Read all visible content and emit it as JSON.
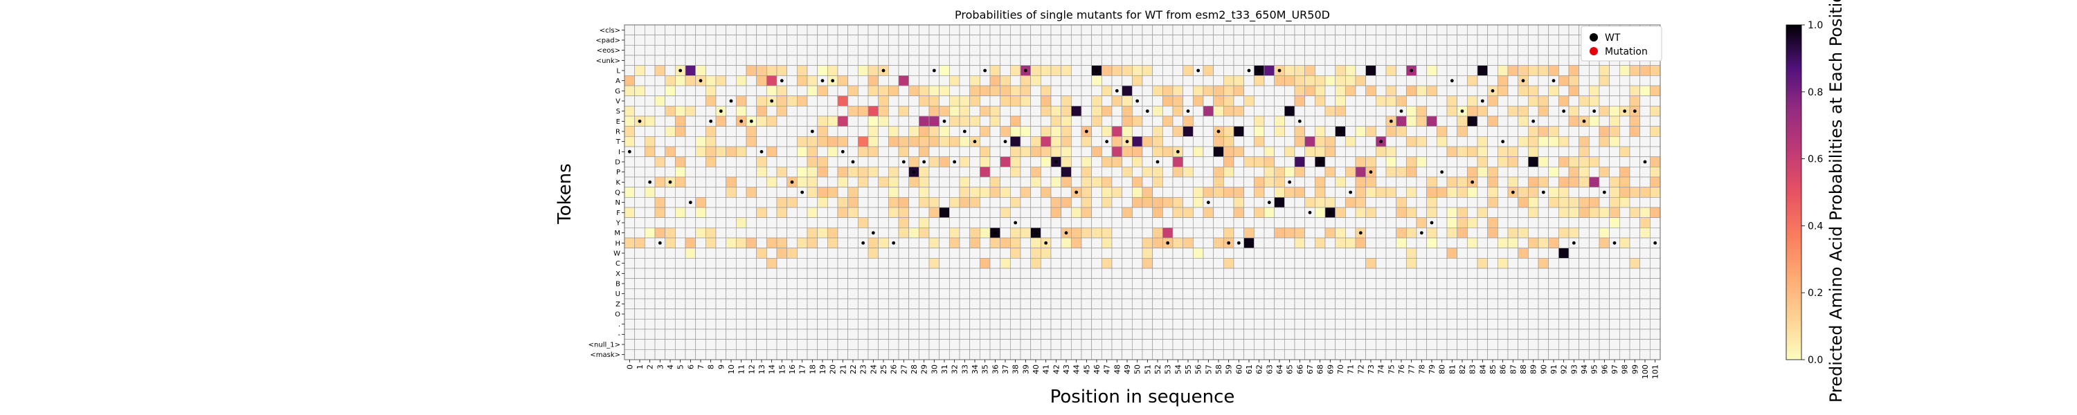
{
  "chart_data": {
    "type": "heatmap",
    "title": "Probabilities of single mutants for WT from esm2_t33_650M_UR50D",
    "xlabel": "Position in sequence",
    "ylabel": "Tokens",
    "colorbar_label": "Predicted Amino Acid Probabilities at Each Position",
    "colorbar_ticks": [
      "0.0",
      "0.2",
      "0.4",
      "0.6",
      "0.8",
      "1.0"
    ],
    "colorbar_range": [
      0,
      1
    ],
    "colormap": "magma_r",
    "legend_position": "top-right",
    "legend": [
      {
        "label": "WT",
        "color": "#000000"
      },
      {
        "label": "Mutation",
        "color": "#e8000b"
      }
    ],
    "tokens": [
      "<cls>",
      "<pad>",
      "<eos>",
      "<unk>",
      "L",
      "A",
      "G",
      "V",
      "S",
      "E",
      "R",
      "T",
      "I",
      "D",
      "P",
      "K",
      "Q",
      "N",
      "F",
      "Y",
      "M",
      "H",
      "W",
      "C",
      "X",
      "B",
      "U",
      "Z",
      "O",
      ".",
      "-",
      "<null_1>",
      "<mask>"
    ],
    "positions": [
      "0",
      "1",
      "2",
      "3",
      "4",
      "5",
      "6",
      "7",
      "8",
      "9",
      "10",
      "11",
      "12",
      "13",
      "14",
      "15",
      "16",
      "17",
      "18",
      "19",
      "20",
      "21",
      "22",
      "23",
      "24",
      "25",
      "26",
      "27",
      "28",
      "29",
      "30",
      "31",
      "32",
      "33",
      "34",
      "35",
      "36",
      "37",
      "38",
      "39",
      "40",
      "41",
      "42",
      "43",
      "44",
      "45",
      "46",
      "47",
      "48",
      "49",
      "50",
      "51",
      "52",
      "53",
      "54",
      "55",
      "56",
      "57",
      "58",
      "59",
      "60",
      "61",
      "62",
      "63",
      "64",
      "65",
      "66",
      "67",
      "68",
      "69",
      "70",
      "71",
      "72",
      "73",
      "74",
      "75",
      "76",
      "77",
      "78",
      "79",
      "80",
      "81",
      "82",
      "83",
      "84",
      "85",
      "86",
      "87",
      "88",
      "89",
      "90",
      "91",
      "92",
      "93",
      "94",
      "95",
      "96",
      "97",
      "98",
      "99",
      "100",
      "101"
    ],
    "wild_type_tokens": [
      "I",
      "E",
      "K",
      "H",
      "K",
      "L",
      "N",
      "A",
      "E",
      "S",
      "V",
      "E",
      "E",
      "I",
      "V",
      "A",
      "K",
      "Q",
      "R",
      "A",
      "A",
      "I",
      "D",
      "H",
      "M",
      "L",
      "H",
      "D",
      "P",
      "D",
      "L",
      "E",
      "D",
      "R",
      "T",
      "L",
      "M",
      "T",
      "Y",
      "L",
      "M",
      "H",
      "D",
      "M",
      "Q",
      "R",
      "L",
      "T",
      "G",
      "T",
      "V",
      "S",
      "D",
      "H",
      "I",
      "S",
      "L",
      "N",
      "R",
      "H",
      "H",
      "L",
      "L",
      "N",
      "L",
      "K",
      "E",
      "F",
      "D",
      "F",
      "R",
      "Q",
      "M",
      "P",
      "T",
      "E",
      "S",
      "L",
      "M",
      "Y",
      "P",
      "A",
      "S",
      "K",
      "V",
      "G",
      "T",
      "Q",
      "A",
      "E",
      "Q",
      "A",
      "S",
      "H",
      "E",
      "S",
      "Q",
      "H",
      "S",
      "S",
      "D",
      "H"
    ],
    "mutation_cells": [
      [
        6,
        "L"
      ],
      [
        23,
        "T"
      ],
      [
        30,
        "T"
      ],
      [
        40,
        "L"
      ],
      [
        46,
        "L"
      ],
      [
        62,
        "L"
      ],
      [
        63,
        "L"
      ],
      [
        91,
        "A"
      ],
      [
        8,
        "K"
      ],
      [
        34,
        "L"
      ]
    ],
    "highlight_cells": [
      {
        "position": 5,
        "token": "L",
        "probability": 0.04
      },
      {
        "position": 6,
        "token": "L",
        "probability": 0.85
      },
      {
        "position": 14,
        "token": "A",
        "probability": 0.55
      },
      {
        "position": 21,
        "token": "E",
        "probability": 0.6
      },
      {
        "position": 21,
        "token": "V",
        "probability": 0.45
      },
      {
        "position": 23,
        "token": "T",
        "probability": 0.4
      },
      {
        "position": 24,
        "token": "S",
        "probability": 0.5
      },
      {
        "position": 27,
        "token": "A",
        "probability": 0.65
      },
      {
        "position": 28,
        "token": "P",
        "probability": 0.95
      },
      {
        "position": 29,
        "token": "E",
        "probability": 0.7
      },
      {
        "position": 30,
        "token": "E",
        "probability": 0.7
      },
      {
        "position": 31,
        "token": "F",
        "probability": 0.98
      },
      {
        "position": 35,
        "token": "P",
        "probability": 0.6
      },
      {
        "position": 36,
        "token": "M",
        "probability": 0.98
      },
      {
        "position": 37,
        "token": "D",
        "probability": 0.6
      },
      {
        "position": 38,
        "token": "T",
        "probability": 0.95
      },
      {
        "position": 39,
        "token": "L",
        "probability": 0.7
      },
      {
        "position": 40,
        "token": "M",
        "probability": 0.98
      },
      {
        "position": 41,
        "token": "T",
        "probability": 0.6
      },
      {
        "position": 42,
        "token": "D",
        "probability": 0.95
      },
      {
        "position": 43,
        "token": "P",
        "probability": 0.95
      },
      {
        "position": 44,
        "token": "S",
        "probability": 0.95
      },
      {
        "position": 46,
        "token": "L",
        "probability": 0.98
      },
      {
        "position": 48,
        "token": "I",
        "probability": 0.6
      },
      {
        "position": 48,
        "token": "R",
        "probability": 0.6
      },
      {
        "position": 49,
        "token": "G",
        "probability": 0.95
      },
      {
        "position": 50,
        "token": "T",
        "probability": 0.9
      },
      {
        "position": 53,
        "token": "M",
        "probability": 0.6
      },
      {
        "position": 54,
        "token": "D",
        "probability": 0.6
      },
      {
        "position": 55,
        "token": "R",
        "probability": 0.95
      },
      {
        "position": 57,
        "token": "S",
        "probability": 0.7
      },
      {
        "position": 58,
        "token": "I",
        "probability": 0.98
      },
      {
        "position": 60,
        "token": "R",
        "probability": 0.98
      },
      {
        "position": 61,
        "token": "H",
        "probability": 0.98
      },
      {
        "position": 62,
        "token": "L",
        "probability": 0.98
      },
      {
        "position": 63,
        "token": "L",
        "probability": 0.85
      },
      {
        "position": 64,
        "token": "N",
        "probability": 0.98
      },
      {
        "position": 65,
        "token": "S",
        "probability": 0.98
      },
      {
        "position": 66,
        "token": "D",
        "probability": 0.9
      },
      {
        "position": 67,
        "token": "T",
        "probability": 0.7
      },
      {
        "position": 68,
        "token": "D",
        "probability": 0.98
      },
      {
        "position": 69,
        "token": "F",
        "probability": 0.98
      },
      {
        "position": 70,
        "token": "R",
        "probability": 0.98
      },
      {
        "position": 72,
        "token": "P",
        "probability": 0.7
      },
      {
        "position": 73,
        "token": "L",
        "probability": 0.98
      },
      {
        "position": 74,
        "token": "T",
        "probability": 0.7
      },
      {
        "position": 76,
        "token": "E",
        "probability": 0.7
      },
      {
        "position": 77,
        "token": "L",
        "probability": 0.7
      },
      {
        "position": 79,
        "token": "E",
        "probability": 0.7
      },
      {
        "position": 83,
        "token": "E",
        "probability": 0.98
      },
      {
        "position": 84,
        "token": "L",
        "probability": 0.98
      },
      {
        "position": 89,
        "token": "D",
        "probability": 0.98
      },
      {
        "position": 92,
        "token": "W",
        "probability": 0.98
      },
      {
        "position": 95,
        "token": "K",
        "probability": 0.7
      }
    ]
  }
}
